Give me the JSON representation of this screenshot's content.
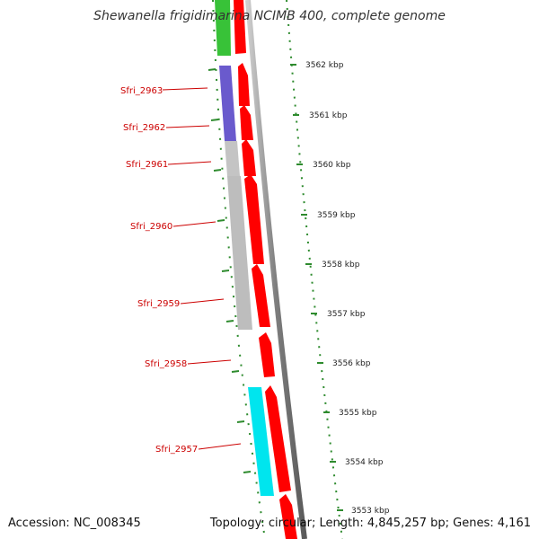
{
  "title": "Shewanella frigidimarina NCIMB 400, complete genome",
  "accession": "Accession: NC_008345",
  "summary": "Topology: circular; Length: 4,845,257 bp; Genes: 4,161",
  "kbp_ticks": [
    {
      "label": "3562 kbp"
    },
    {
      "label": "3561 kbp"
    },
    {
      "label": "3560 kbp"
    },
    {
      "label": "3559 kbp"
    },
    {
      "label": "3558 kbp"
    },
    {
      "label": "3557 kbp"
    },
    {
      "label": "3556 kbp"
    },
    {
      "label": "3555 kbp"
    },
    {
      "label": "3554 kbp"
    },
    {
      "label": "3553 kbp"
    }
  ],
  "genes": [
    {
      "label": "Sfri_2963"
    },
    {
      "label": "Sfri_2962"
    },
    {
      "label": "Sfri_2961"
    },
    {
      "label": "Sfri_2960"
    },
    {
      "label": "Sfri_2959"
    },
    {
      "label": "Sfri_2958"
    },
    {
      "label": "Sfri_2957"
    }
  ],
  "colors": {
    "gene_label": "#cc0000",
    "cds": "#ff0000",
    "cog_green": "#22bb22",
    "cog_purple": "#6a5acd",
    "cog_gray": "#bdbdbd",
    "cog_cyan": "#00e5ee",
    "backbone": "#8c8c8c",
    "tick": "#2e8b2e"
  }
}
